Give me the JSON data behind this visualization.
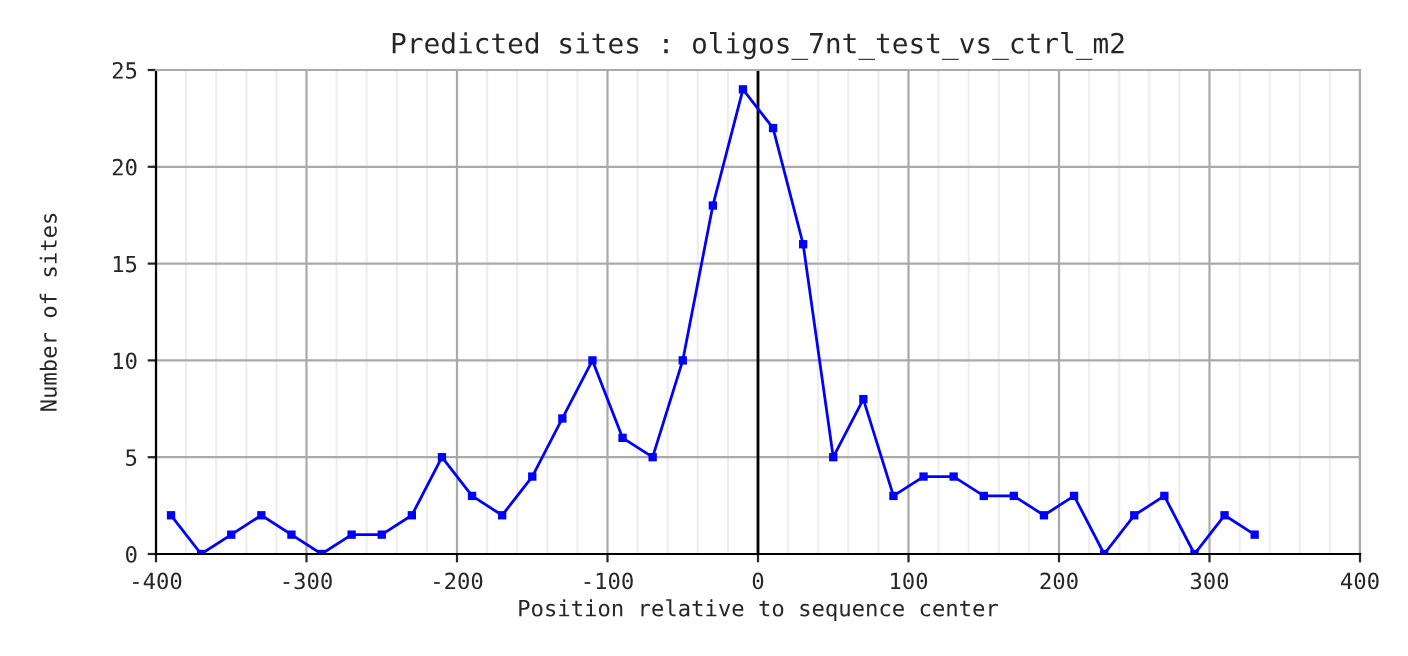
{
  "chart_data": {
    "type": "line",
    "title": "Predicted sites : oligos_7nt_test_vs_ctrl_m2",
    "xlabel": "Position relative to sequence center",
    "ylabel": "Number of sites",
    "x": [
      -390,
      -370,
      -350,
      -330,
      -310,
      -290,
      -270,
      -250,
      -230,
      -210,
      -190,
      -170,
      -150,
      -130,
      -110,
      -90,
      -70,
      -50,
      -30,
      -10,
      10,
      30,
      50,
      70,
      90,
      110,
      130,
      150,
      170,
      190,
      210,
      230,
      250,
      270,
      290,
      310,
      330
    ],
    "series": [
      {
        "color": "#0000ff",
        "values": [
          2,
          0,
          1,
          2,
          1,
          0,
          1,
          1,
          2,
          5,
          3,
          2,
          4,
          7,
          10,
          6,
          5,
          10,
          18,
          24,
          22,
          16,
          5,
          8,
          3,
          4,
          4,
          3,
          3,
          2,
          3,
          0,
          2,
          3,
          0,
          2,
          1
        ]
      }
    ],
    "xlim": [
      -400,
      400
    ],
    "ylim": [
      0,
      25
    ],
    "xticks": [
      -400,
      -300,
      -200,
      -100,
      0,
      100,
      200,
      300,
      400
    ],
    "yticks": [
      0,
      5,
      10,
      15,
      20,
      25
    ],
    "ref_lines": [
      {
        "axis": "x",
        "value": 0,
        "color": "#000000"
      }
    ],
    "grid": true,
    "marker": "square",
    "line_style": "solid",
    "legend": false
  }
}
